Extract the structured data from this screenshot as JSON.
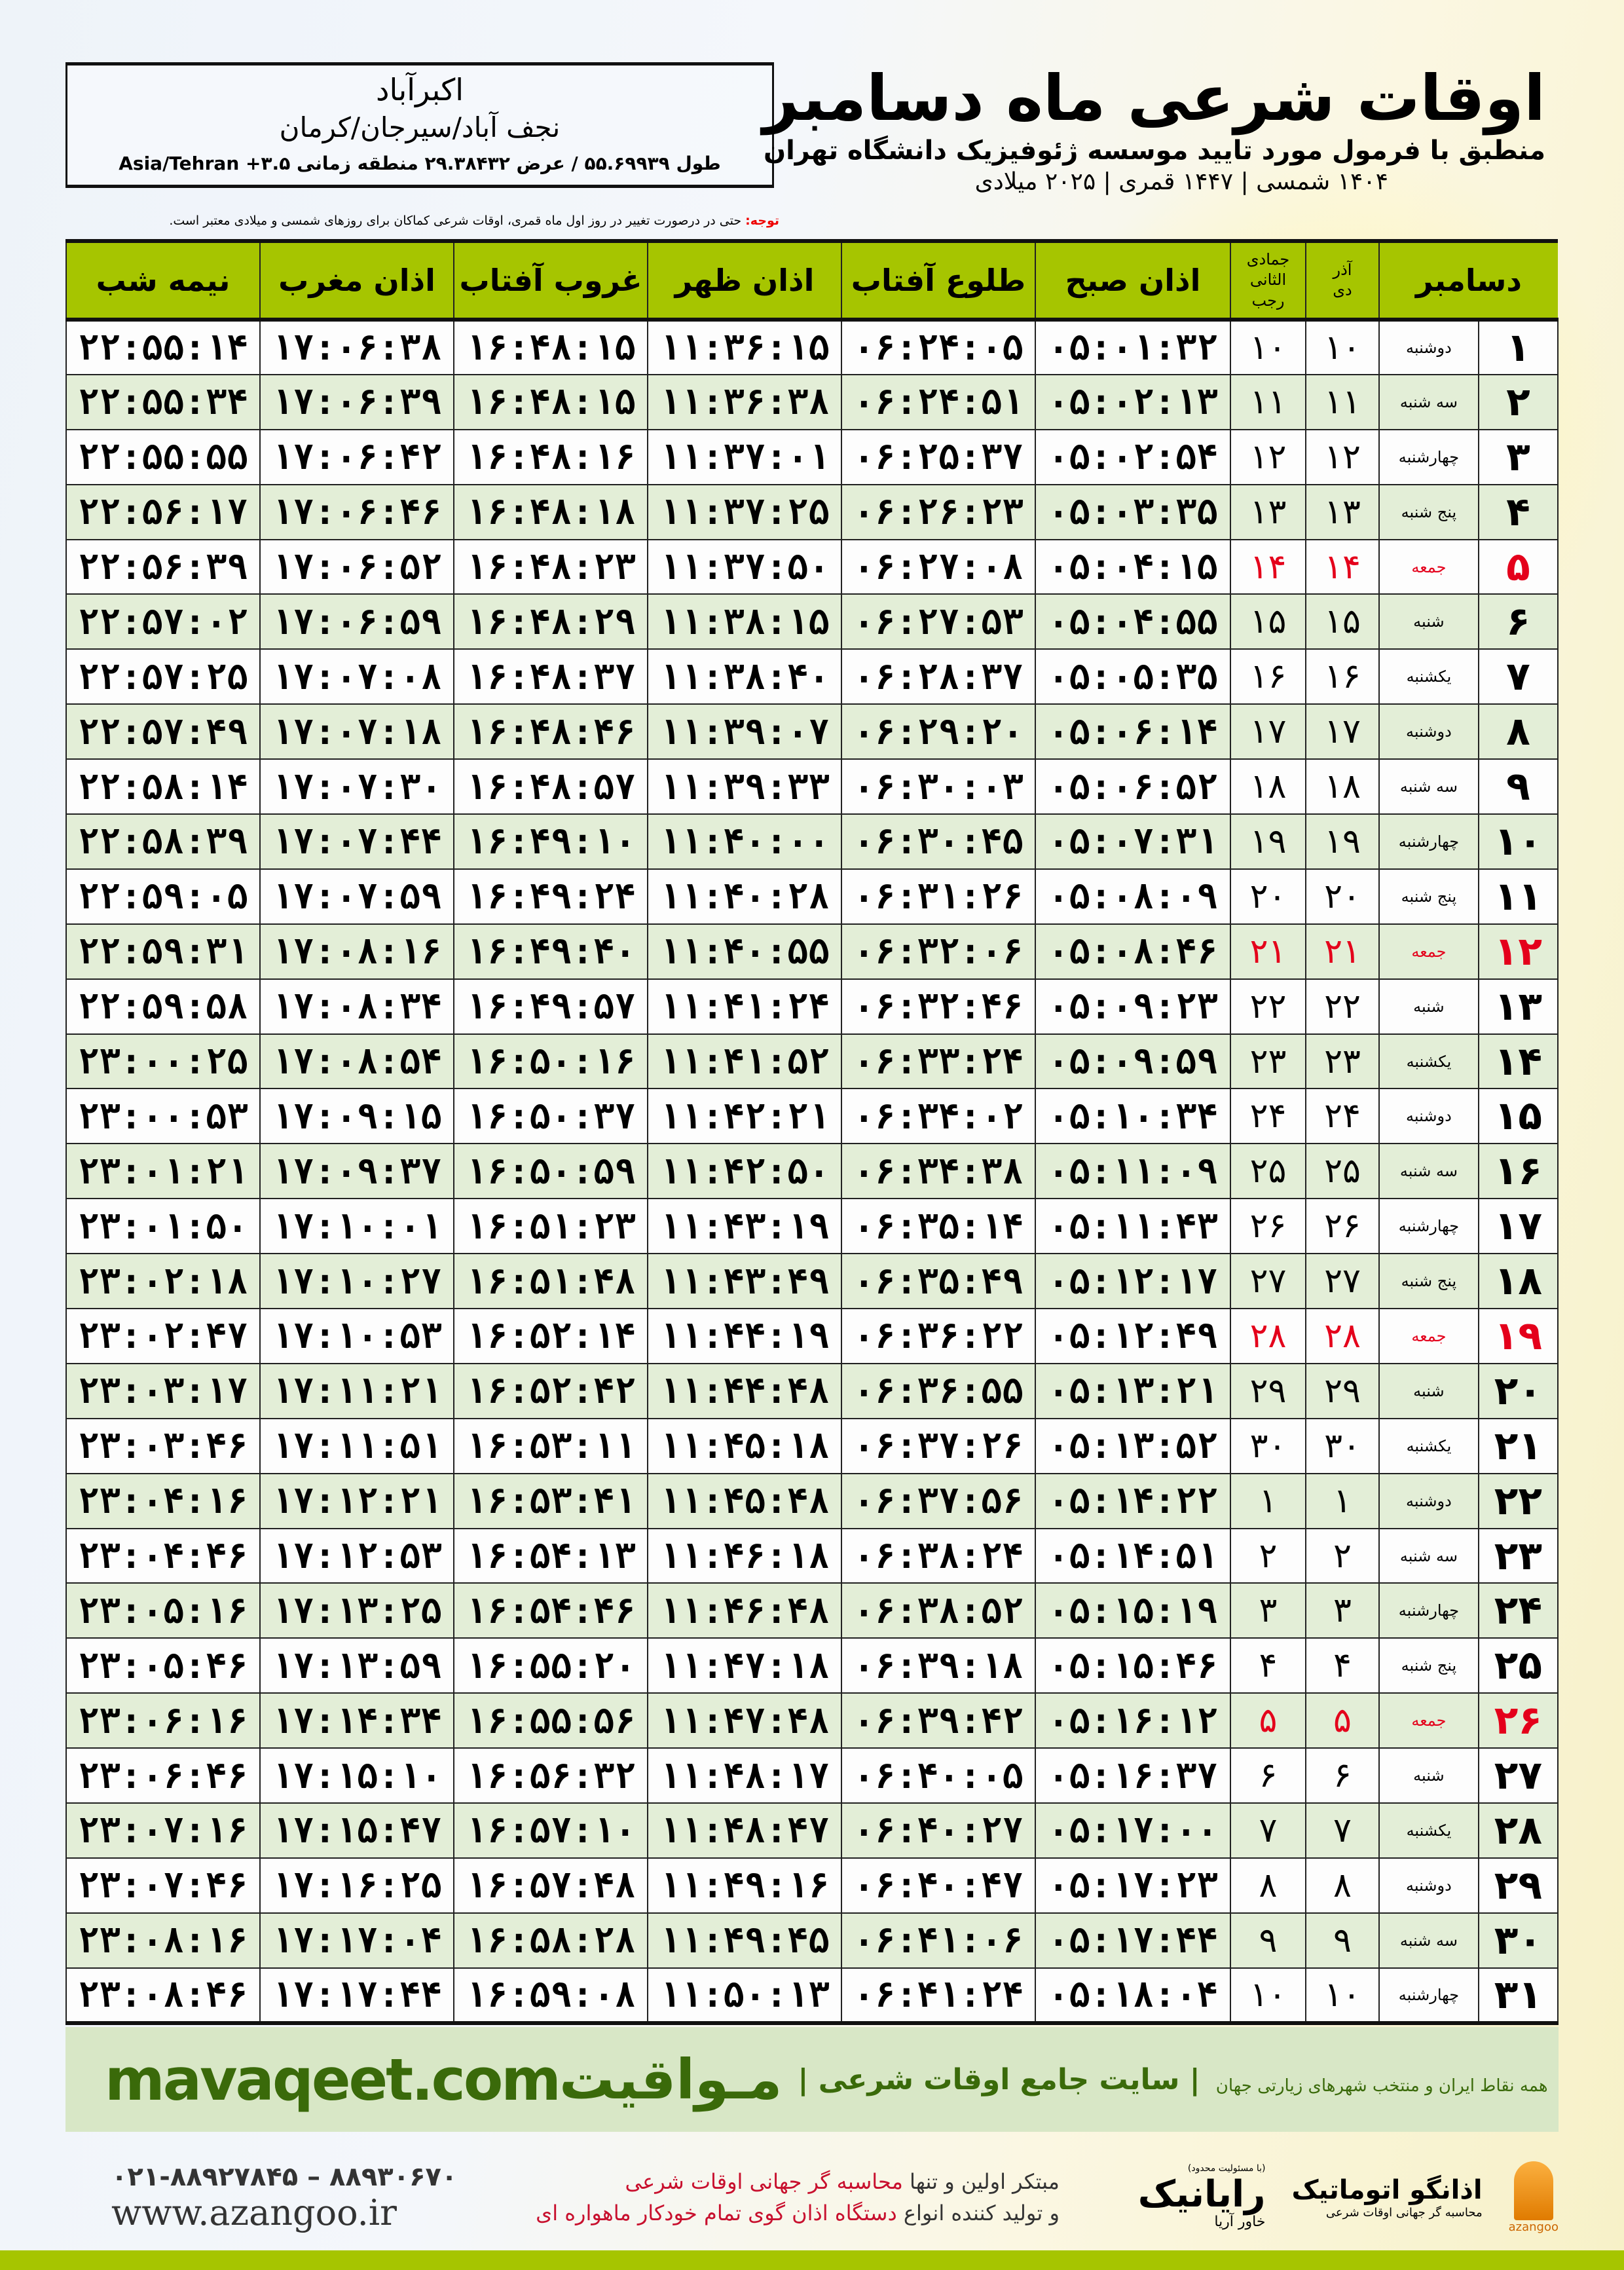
{
  "header": {
    "city": "اکبرآباد",
    "region": "نجف آباد/سیرجان/کرمان",
    "coords": "طول ۵۵.۶۹۹۳۹ / عرض ۲۹.۳۸۴۳۲ منطقه زمانی ۳.۵+ Asia/Tehran",
    "title": "اوقات شرعی ماه دسامبر",
    "subtitle": "منطبق با فرمول مورد تایید موسسه ژئوفیزیک دانشگاه تهران",
    "dateline": "۱۴۰۴ شمسی | ۱۴۴۷ قمری | ۲۰۲۵ میلادی",
    "note_label": "توجه:",
    "note_text": " حتی در درصورت تغییر در روز اول ماه قمری، اوقات شرعی کماکان برای روزهای شمسی و میلادی معتبر است."
  },
  "columns": {
    "month": "دسامبر",
    "shamsi_top": "آذر",
    "shamsi_bottom": "دی",
    "qamari_top": "جمادی الثانی",
    "qamari_bottom": "رجب",
    "subh": "اذان صبح",
    "tulu": "طلوع آفتاب",
    "zuhr": "اذان ظهر",
    "ghurub": "غروب آفتاب",
    "maghrib": "اذان مغرب",
    "nime": "نیمه شب"
  },
  "colors": {
    "header_green": "#a6c500",
    "row_alt": "#e3eed7",
    "friday_red": "#e4001b",
    "footer_green": "#3a6a0a"
  },
  "rows": [
    [
      "۱",
      "دوشنبه",
      "۱۰",
      "۱۰",
      "۰۵:۰۱:۳۲",
      "۰۶:۲۴:۰۵",
      "۱۱:۳۶:۱۵",
      "۱۶:۴۸:۱۵",
      "۱۷:۰۶:۳۸",
      "۲۲:۵۵:۱۴"
    ],
    [
      "۲",
      "سه شنبه",
      "۱۱",
      "۱۱",
      "۰۵:۰۲:۱۳",
      "۰۶:۲۴:۵۱",
      "۱۱:۳۶:۳۸",
      "۱۶:۴۸:۱۵",
      "۱۷:۰۶:۳۹",
      "۲۲:۵۵:۳۴"
    ],
    [
      "۳",
      "چهارشنبه",
      "۱۲",
      "۱۲",
      "۰۵:۰۲:۵۴",
      "۰۶:۲۵:۳۷",
      "۱۱:۳۷:۰۱",
      "۱۶:۴۸:۱۶",
      "۱۷:۰۶:۴۲",
      "۲۲:۵۵:۵۵"
    ],
    [
      "۴",
      "پنج شنبه",
      "۱۳",
      "۱۳",
      "۰۵:۰۳:۳۵",
      "۰۶:۲۶:۲۳",
      "۱۱:۳۷:۲۵",
      "۱۶:۴۸:۱۸",
      "۱۷:۰۶:۴۶",
      "۲۲:۵۶:۱۷"
    ],
    [
      "۵",
      "جمعه",
      "۱۴",
      "۱۴",
      "۰۵:۰۴:۱۵",
      "۰۶:۲۷:۰۸",
      "۱۱:۳۷:۵۰",
      "۱۶:۴۸:۲۳",
      "۱۷:۰۶:۵۲",
      "۲۲:۵۶:۳۹"
    ],
    [
      "۶",
      "شنبه",
      "۱۵",
      "۱۵",
      "۰۵:۰۴:۵۵",
      "۰۶:۲۷:۵۳",
      "۱۱:۳۸:۱۵",
      "۱۶:۴۸:۲۹",
      "۱۷:۰۶:۵۹",
      "۲۲:۵۷:۰۲"
    ],
    [
      "۷",
      "یکشنبه",
      "۱۶",
      "۱۶",
      "۰۵:۰۵:۳۵",
      "۰۶:۲۸:۳۷",
      "۱۱:۳۸:۴۰",
      "۱۶:۴۸:۳۷",
      "۱۷:۰۷:۰۸",
      "۲۲:۵۷:۲۵"
    ],
    [
      "۸",
      "دوشنبه",
      "۱۷",
      "۱۷",
      "۰۵:۰۶:۱۴",
      "۰۶:۲۹:۲۰",
      "۱۱:۳۹:۰۷",
      "۱۶:۴۸:۴۶",
      "۱۷:۰۷:۱۸",
      "۲۲:۵۷:۴۹"
    ],
    [
      "۹",
      "سه شنبه",
      "۱۸",
      "۱۸",
      "۰۵:۰۶:۵۲",
      "۰۶:۳۰:۰۳",
      "۱۱:۳۹:۳۳",
      "۱۶:۴۸:۵۷",
      "۱۷:۰۷:۳۰",
      "۲۲:۵۸:۱۴"
    ],
    [
      "۱۰",
      "چهارشنبه",
      "۱۹",
      "۱۹",
      "۰۵:۰۷:۳۱",
      "۰۶:۳۰:۴۵",
      "۱۱:۴۰:۰۰",
      "۱۶:۴۹:۱۰",
      "۱۷:۰۷:۴۴",
      "۲۲:۵۸:۳۹"
    ],
    [
      "۱۱",
      "پنج شنبه",
      "۲۰",
      "۲۰",
      "۰۵:۰۸:۰۹",
      "۰۶:۳۱:۲۶",
      "۱۱:۴۰:۲۸",
      "۱۶:۴۹:۲۴",
      "۱۷:۰۷:۵۹",
      "۲۲:۵۹:۰۵"
    ],
    [
      "۱۲",
      "جمعه",
      "۲۱",
      "۲۱",
      "۰۵:۰۸:۴۶",
      "۰۶:۳۲:۰۶",
      "۱۱:۴۰:۵۵",
      "۱۶:۴۹:۴۰",
      "۱۷:۰۸:۱۶",
      "۲۲:۵۹:۳۱"
    ],
    [
      "۱۳",
      "شنبه",
      "۲۲",
      "۲۲",
      "۰۵:۰۹:۲۳",
      "۰۶:۳۲:۴۶",
      "۱۱:۴۱:۲۴",
      "۱۶:۴۹:۵۷",
      "۱۷:۰۸:۳۴",
      "۲۲:۵۹:۵۸"
    ],
    [
      "۱۴",
      "یکشنبه",
      "۲۳",
      "۲۳",
      "۰۵:۰۹:۵۹",
      "۰۶:۳۳:۲۴",
      "۱۱:۴۱:۵۲",
      "۱۶:۵۰:۱۶",
      "۱۷:۰۸:۵۴",
      "۲۳:۰۰:۲۵"
    ],
    [
      "۱۵",
      "دوشنبه",
      "۲۴",
      "۲۴",
      "۰۵:۱۰:۳۴",
      "۰۶:۳۴:۰۲",
      "۱۱:۴۲:۲۱",
      "۱۶:۵۰:۳۷",
      "۱۷:۰۹:۱۵",
      "۲۳:۰۰:۵۳"
    ],
    [
      "۱۶",
      "سه شنبه",
      "۲۵",
      "۲۵",
      "۰۵:۱۱:۰۹",
      "۰۶:۳۴:۳۸",
      "۱۱:۴۲:۵۰",
      "۱۶:۵۰:۵۹",
      "۱۷:۰۹:۳۷",
      "۲۳:۰۱:۲۱"
    ],
    [
      "۱۷",
      "چهارشنبه",
      "۲۶",
      "۲۶",
      "۰۵:۱۱:۴۳",
      "۰۶:۳۵:۱۴",
      "۱۱:۴۳:۱۹",
      "۱۶:۵۱:۲۳",
      "۱۷:۱۰:۰۱",
      "۲۳:۰۱:۵۰"
    ],
    [
      "۱۸",
      "پنج شنبه",
      "۲۷",
      "۲۷",
      "۰۵:۱۲:۱۷",
      "۰۶:۳۵:۴۹",
      "۱۱:۴۳:۴۹",
      "۱۶:۵۱:۴۸",
      "۱۷:۱۰:۲۷",
      "۲۳:۰۲:۱۸"
    ],
    [
      "۱۹",
      "جمعه",
      "۲۸",
      "۲۸",
      "۰۵:۱۲:۴۹",
      "۰۶:۳۶:۲۲",
      "۱۱:۴۴:۱۹",
      "۱۶:۵۲:۱۴",
      "۱۷:۱۰:۵۳",
      "۲۳:۰۲:۴۷"
    ],
    [
      "۲۰",
      "شنبه",
      "۲۹",
      "۲۹",
      "۰۵:۱۳:۲۱",
      "۰۶:۳۶:۵۵",
      "۱۱:۴۴:۴۸",
      "۱۶:۵۲:۴۲",
      "۱۷:۱۱:۲۱",
      "۲۳:۰۳:۱۷"
    ],
    [
      "۲۱",
      "یکشنبه",
      "۳۰",
      "۳۰",
      "۰۵:۱۳:۵۲",
      "۰۶:۳۷:۲۶",
      "۱۱:۴۵:۱۸",
      "۱۶:۵۳:۱۱",
      "۱۷:۱۱:۵۱",
      "۲۳:۰۳:۴۶"
    ],
    [
      "۲۲",
      "دوشنبه",
      "۱",
      "۱",
      "۰۵:۱۴:۲۲",
      "۰۶:۳۷:۵۶",
      "۱۱:۴۵:۴۸",
      "۱۶:۵۳:۴۱",
      "۱۷:۱۲:۲۱",
      "۲۳:۰۴:۱۶"
    ],
    [
      "۲۳",
      "سه شنبه",
      "۲",
      "۲",
      "۰۵:۱۴:۵۱",
      "۰۶:۳۸:۲۴",
      "۱۱:۴۶:۱۸",
      "۱۶:۵۴:۱۳",
      "۱۷:۱۲:۵۳",
      "۲۳:۰۴:۴۶"
    ],
    [
      "۲۴",
      "چهارشنبه",
      "۳",
      "۳",
      "۰۵:۱۵:۱۹",
      "۰۶:۳۸:۵۲",
      "۱۱:۴۶:۴۸",
      "۱۶:۵۴:۴۶",
      "۱۷:۱۳:۲۵",
      "۲۳:۰۵:۱۶"
    ],
    [
      "۲۵",
      "پنج شنبه",
      "۴",
      "۴",
      "۰۵:۱۵:۴۶",
      "۰۶:۳۹:۱۸",
      "۱۱:۴۷:۱۸",
      "۱۶:۵۵:۲۰",
      "۱۷:۱۳:۵۹",
      "۲۳:۰۵:۴۶"
    ],
    [
      "۲۶",
      "جمعه",
      "۵",
      "۵",
      "۰۵:۱۶:۱۲",
      "۰۶:۳۹:۴۲",
      "۱۱:۴۷:۴۸",
      "۱۶:۵۵:۵۶",
      "۱۷:۱۴:۳۴",
      "۲۳:۰۶:۱۶"
    ],
    [
      "۲۷",
      "شنبه",
      "۶",
      "۶",
      "۰۵:۱۶:۳۷",
      "۰۶:۴۰:۰۵",
      "۱۱:۴۸:۱۷",
      "۱۶:۵۶:۳۲",
      "۱۷:۱۵:۱۰",
      "۲۳:۰۶:۴۶"
    ],
    [
      "۲۸",
      "یکشنبه",
      "۷",
      "۷",
      "۰۵:۱۷:۰۰",
      "۰۶:۴۰:۲۷",
      "۱۱:۴۸:۴۷",
      "۱۶:۵۷:۱۰",
      "۱۷:۱۵:۴۷",
      "۲۳:۰۷:۱۶"
    ],
    [
      "۲۹",
      "دوشنبه",
      "۸",
      "۸",
      "۰۵:۱۷:۲۳",
      "۰۶:۴۰:۴۷",
      "۱۱:۴۹:۱۶",
      "۱۶:۵۷:۴۸",
      "۱۷:۱۶:۲۵",
      "۲۳:۰۷:۴۶"
    ],
    [
      "۳۰",
      "سه شنبه",
      "۹",
      "۹",
      "۰۵:۱۷:۴۴",
      "۰۶:۴۱:۰۶",
      "۱۱:۴۹:۴۵",
      "۱۶:۵۸:۲۸",
      "۱۷:۱۷:۰۴",
      "۲۳:۰۸:۱۶"
    ],
    [
      "۳۱",
      "چهارشنبه",
      "۱۰",
      "۱۰",
      "۰۵:۱۸:۰۴",
      "۰۶:۴۱:۲۴",
      "۱۱:۵۰:۱۳",
      "۱۶:۵۹:۰۸",
      "۱۷:۱۷:۴۴",
      "۲۳:۰۸:۴۶"
    ]
  ],
  "footer": {
    "site": "mavaqeet.com",
    "brand": "مـواقیت",
    "slogan": "| سایت جامع اوقات شرعی |",
    "slogan2": "همه نقاط ایران و منتخب شهرهای زیارتی جهان",
    "phone": "۰۲۱-۸۸۹۲۷۸۴۵ – ۸۸۹۳۰۶۷۰",
    "url": "www.azangoo.ir",
    "promo1": "مبتکر اولین و تنها ",
    "promo1_red": "محاسبه گر جهانی اوقات شرعی",
    "promo2": "و تولید کننده انواع ",
    "promo2_red": "دستگاه اذان گوی تمام خودکار ماهواره ای",
    "rayanik_small": "(با مسئولیت محدود)",
    "rayanik": "رایانیک",
    "rayanik_cap": "خاور آریا",
    "azangoo": "اذانگو اتوماتیک",
    "azangoo_sub": "محاسبه گر جهانی اوقات شرعی",
    "azangoo_en": "azangoo"
  }
}
